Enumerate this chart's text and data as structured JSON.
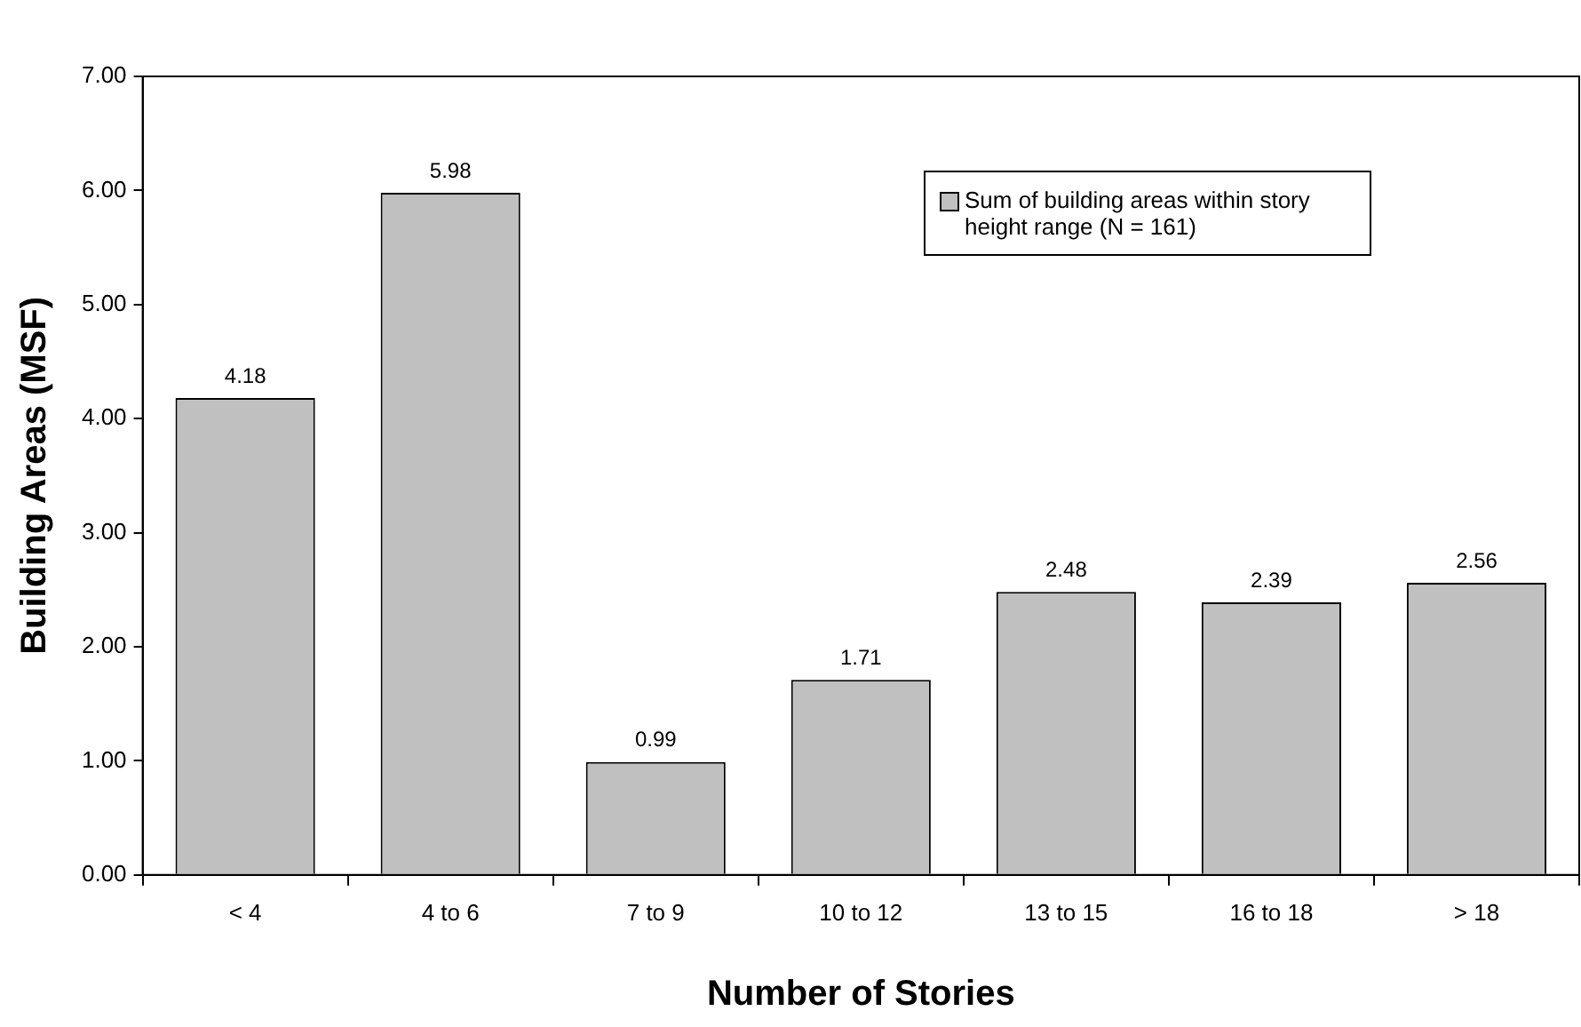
{
  "chart_data": {
    "type": "bar",
    "xlabel": "Number of Stories",
    "ylabel": "Building Areas (MSF)",
    "categories": [
      "< 4",
      "4 to 6",
      "7 to 9",
      "10 to 12",
      "13 to 15",
      "16 to 18",
      "> 18"
    ],
    "series": [
      {
        "name": "Sum of building areas within story height range (N = 161)",
        "color": "#c0c0c0",
        "values": [
          4.18,
          5.98,
          0.99,
          1.71,
          2.48,
          2.39,
          2.56
        ]
      }
    ],
    "ylim": [
      0,
      7
    ],
    "yticks": [
      {
        "value": 0,
        "label": "0.00"
      },
      {
        "value": 1,
        "label": "1.00"
      },
      {
        "value": 2,
        "label": "2.00"
      },
      {
        "value": 3,
        "label": "3.00"
      },
      {
        "value": 4,
        "label": "4.00"
      },
      {
        "value": 5,
        "label": "5.00"
      },
      {
        "value": 6,
        "label": "6.00"
      },
      {
        "value": 7,
        "label": "7.00"
      }
    ],
    "data_labels": true,
    "legend": "top right",
    "grid": false
  }
}
